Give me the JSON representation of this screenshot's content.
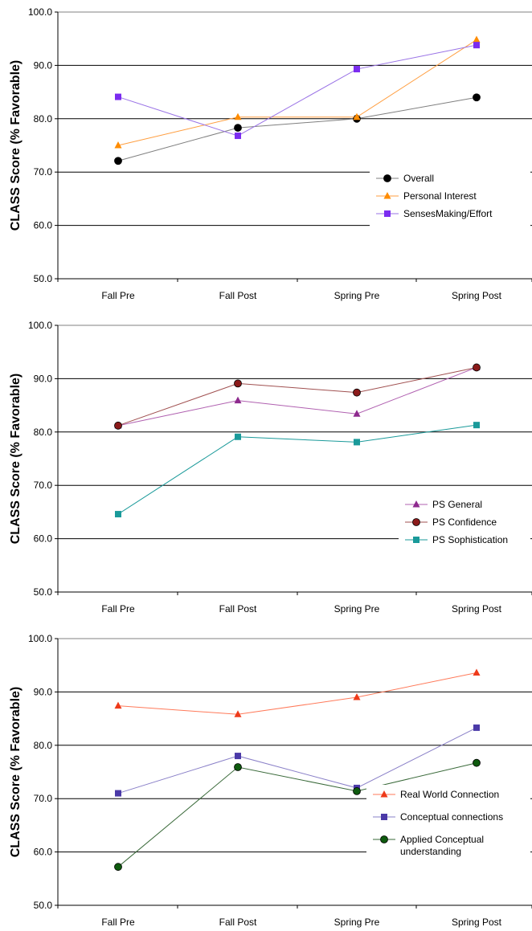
{
  "chart_data": [
    {
      "type": "line",
      "ylabel": "CLASS Score (% Favorable)",
      "categories": [
        "Fall Pre",
        "Fall Post",
        "Spring Pre",
        "Spring Post"
      ],
      "ylim": [
        50,
        100
      ],
      "yticks": [
        "50.0",
        "60.0",
        "70.0",
        "80.0",
        "90.0",
        "100.0"
      ],
      "grid": true,
      "legend_position": "lower-right",
      "series": [
        {
          "name": "Overall",
          "values": [
            72.1,
            78.3,
            80.0,
            84.0
          ],
          "color": "#000000",
          "line_color": "#7f7f7f",
          "marker": "circle"
        },
        {
          "name": "Personal Interest",
          "values": [
            75.0,
            80.3,
            80.3,
            94.8
          ],
          "color": "#ff8c00",
          "line_color": "#ff9e40",
          "marker": "triangle"
        },
        {
          "name": "SensesMaking/Effort",
          "values": [
            84.1,
            76.8,
            89.3,
            93.8
          ],
          "color": "#7b2cf0",
          "line_color": "#9a73e6",
          "marker": "square"
        }
      ]
    },
    {
      "type": "line",
      "ylabel": "CLASS Score (% Favorable)",
      "categories": [
        "Fall Pre",
        "Fall Post",
        "Spring Pre",
        "Spring Post"
      ],
      "ylim": [
        50,
        100
      ],
      "yticks": [
        "50.0",
        "60.0",
        "70.0",
        "80.0",
        "90.0",
        "100.0"
      ],
      "grid": true,
      "legend_position": "lower-right",
      "series": [
        {
          "name": "PS General",
          "values": [
            81.2,
            85.9,
            83.4,
            92.1
          ],
          "color": "#8e2a8e",
          "line_color": "#b060b0",
          "marker": "triangle"
        },
        {
          "name": "PS Confidence",
          "values": [
            81.2,
            89.1,
            87.4,
            92.1
          ],
          "color": "#8b1a1a",
          "line_color": "#a05050",
          "marker": "circle"
        },
        {
          "name": "PS Sophistication",
          "values": [
            64.6,
            79.1,
            78.1,
            81.3
          ],
          "color": "#1a9a9a",
          "line_color": "#1a9a9a",
          "marker": "square"
        }
      ]
    },
    {
      "type": "line",
      "ylabel": "CLASS Score (% Favorable)",
      "categories": [
        "Fall Pre",
        "Fall Post",
        "Spring Pre",
        "Spring Post"
      ],
      "ylim": [
        50,
        100
      ],
      "yticks": [
        "50.0",
        "60.0",
        "70.0",
        "80.0",
        "90.0",
        "100.0"
      ],
      "grid": true,
      "legend_position": "lower-right",
      "series": [
        {
          "name": "Real World Connection",
          "values": [
            87.4,
            85.8,
            89.0,
            93.6
          ],
          "color": "#ee3a1a",
          "line_color": "#ff7a5a",
          "marker": "triangle"
        },
        {
          "name": "Conceptual connections",
          "values": [
            71.0,
            78.0,
            72.0,
            83.3
          ],
          "color": "#4b3aa8",
          "line_color": "#8a80c8",
          "marker": "square"
        },
        {
          "name": "Applied Conceptual understanding",
          "name_lines": [
            "Applied Conceptual",
            "understanding"
          ],
          "values": [
            57.2,
            75.9,
            71.4,
            76.7
          ],
          "color": "#0e5a0e",
          "line_color": "#3a6a3a",
          "marker": "circle"
        }
      ]
    }
  ]
}
